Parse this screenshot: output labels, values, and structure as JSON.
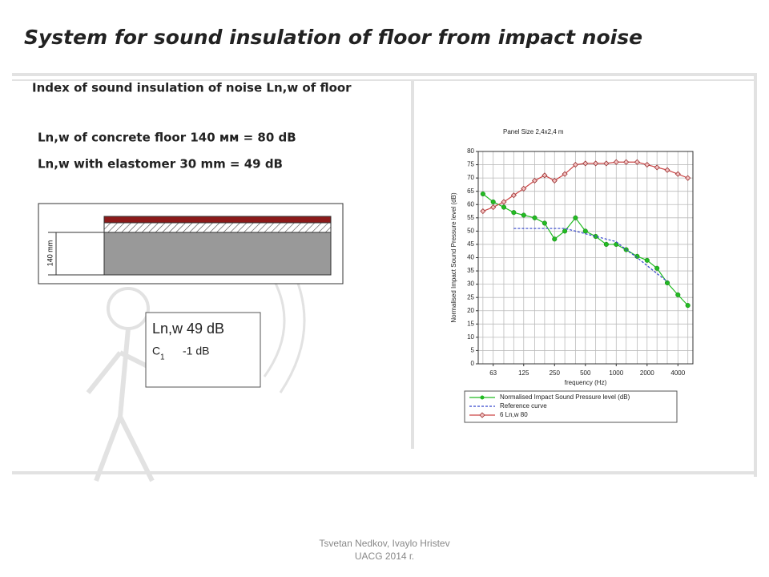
{
  "slide": {
    "title": "System for sound insulation of floor from impact noise",
    "subtitle": "Index of  sound insulation of noise Ln,w of floor",
    "lines": [
      "Ln,w of concrete floor 140 мм = 80 dB",
      "Ln,w with elastomer 30 mm = 49 dB"
    ],
    "footer": [
      "Tsvetan Nedkov, Ivaylo Hristev",
      "UACG 2014 г."
    ]
  },
  "floor_diagram": {
    "dimension": "140 mm"
  },
  "result_box": {
    "index": "Ln,w 49 dB",
    "term": "C",
    "term_sub": "1",
    "term_value": "-1 dB"
  },
  "chart_data": {
    "type": "line",
    "title": "Panel Size 2,4x2,4 m",
    "x_label": "frequency (Hz)",
    "y_label": "Normalised Impact Sound Pressure level (dB)",
    "x": [
      50,
      63,
      80,
      100,
      125,
      160,
      200,
      250,
      315,
      400,
      500,
      630,
      800,
      1000,
      1250,
      1600,
      2000,
      2500,
      3150,
      4000,
      5000
    ],
    "x_log": true,
    "xlim": [
      45,
      5600
    ],
    "xticks": [
      63,
      125,
      250,
      500,
      1000,
      2000,
      4000
    ],
    "ylim": [
      0,
      80
    ],
    "yticks": [
      0,
      5,
      10,
      15,
      20,
      25,
      30,
      35,
      40,
      45,
      50,
      55,
      60,
      65,
      70,
      75,
      80
    ],
    "grid": true,
    "legend": "bottom",
    "series": [
      {
        "name": "Normalised Impact Sound Pressure level (dB)",
        "color": "#22bb22",
        "marker": "circle",
        "dashed": false,
        "values": [
          64,
          61,
          59,
          57,
          56,
          55,
          53,
          47,
          50,
          55,
          50,
          48,
          45,
          45,
          43,
          40.5,
          39,
          36,
          30.5,
          26,
          22
        ]
      },
      {
        "name": "Reference curve",
        "color": "#3344cc",
        "marker": "none",
        "dashed": true,
        "values": [
          null,
          null,
          null,
          51,
          51,
          51,
          51,
          51,
          51,
          50,
          49,
          48,
          47,
          46,
          43,
          40,
          37,
          34,
          31,
          null,
          null
        ]
      },
      {
        "name": "6 Ln,w 80",
        "color": "#cc4444",
        "marker": "diamond",
        "dashed": false,
        "values": [
          57.5,
          59,
          61,
          63.5,
          66,
          69,
          71,
          69,
          71.5,
          75,
          75.5,
          75.5,
          75.5,
          76,
          76,
          76,
          75,
          74,
          73,
          71.5,
          70
        ]
      }
    ]
  }
}
